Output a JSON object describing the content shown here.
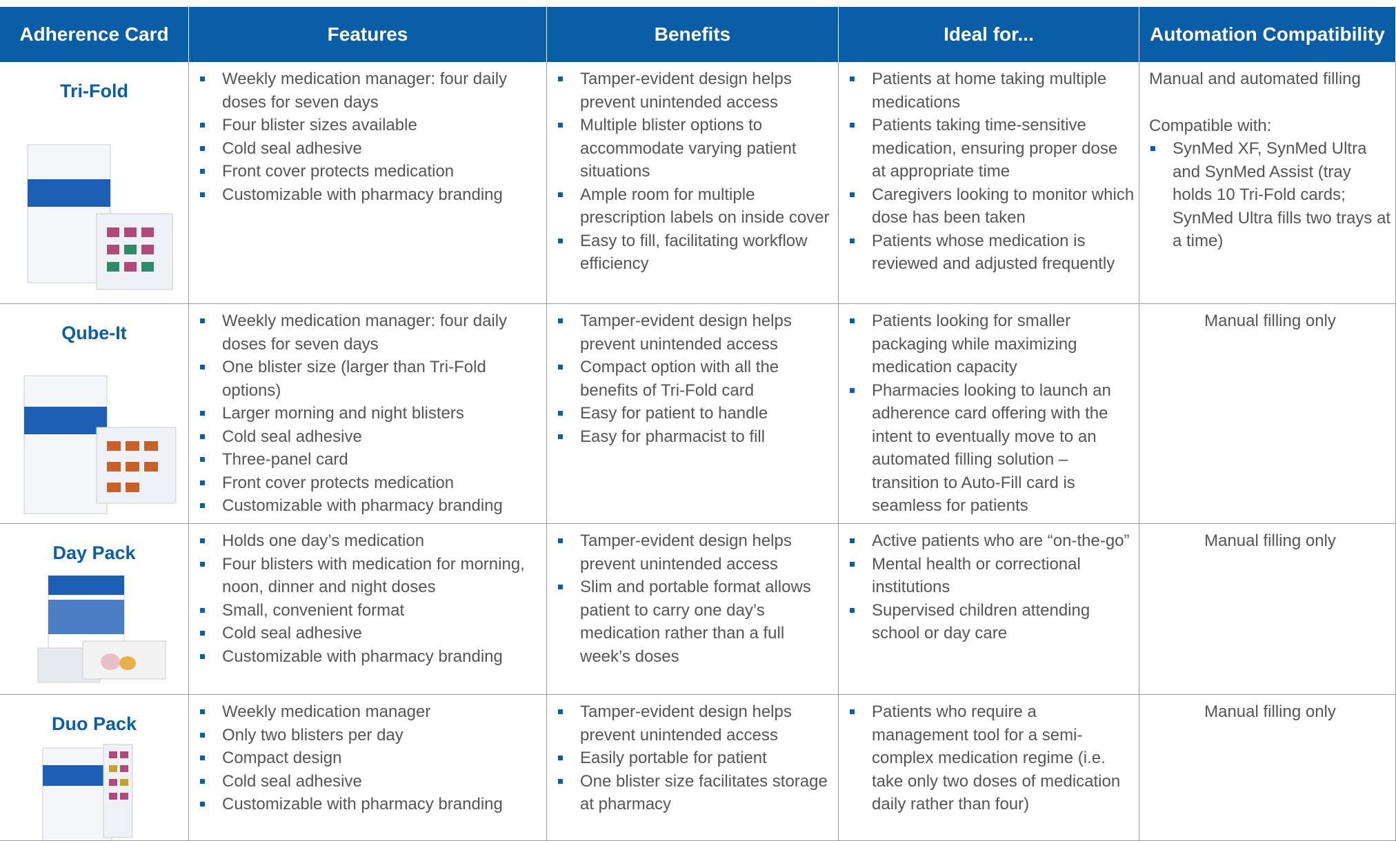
{
  "table": {
    "header": [
      "Adherence Card",
      "Features",
      "Benefits",
      "Ideal for...",
      "Automation Compatibility"
    ],
    "rows": [
      {
        "name": "Tri-Fold",
        "features": [
          "Weekly medication manager: four daily doses for seven days",
          "Four blister sizes available",
          "Cold seal adhesive",
          "Front cover protects medication",
          "Customizable with pharmacy branding"
        ],
        "benefits": [
          "Tamper-evident design helps prevent unintended access",
          "Multiple blister options to accommodate varying patient situations",
          "Ample room for multiple prescription labels on inside cover",
          "Easy to fill, facilitating workflow efficiency"
        ],
        "ideal_for": [
          "Patients at home taking multiple medications",
          "Patients taking time-sensitive medication, ensuring proper dose at appropriate time",
          "Caregivers looking to monitor which dose has been taken",
          "Patients whose medication is reviewed and adjusted frequently"
        ],
        "automation": {
          "text": "Manual and automated filling",
          "note": "Compatible with:",
          "items": [
            "SynMed XF, SynMed Ultra and SynMed Assist (tray holds 10 Tri-Fold cards; SynMed Ultra fills two trays at a time)"
          ]
        }
      },
      {
        "name": "Qube-It",
        "features": [
          "Weekly medication manager: four daily doses for seven days",
          "One blister size (larger than Tri-Fold options)",
          "Larger morning and night blisters",
          "Cold seal adhesive",
          "Three-panel card",
          "Front cover protects medication",
          "Customizable with pharmacy branding"
        ],
        "benefits": [
          "Tamper-evident design helps prevent unintended access",
          "Compact option with all the benefits of Tri-Fold card",
          "Easy for patient to handle",
          "Easy for pharmacist to fill"
        ],
        "ideal_for": [
          "Patients looking for smaller packaging while maximizing medication capacity",
          "Pharmacies looking to launch an adherence card offering with the intent to eventually move to an automated filling solution – transition to Auto-Fill card is seamless for patients"
        ],
        "automation": {
          "text": "Manual filling only"
        }
      },
      {
        "name": "Day Pack",
        "features": [
          "Holds one day’s medication",
          "Four blisters with medication for morning, noon, dinner and night doses",
          "Small, convenient format",
          "Cold seal adhesive",
          "Customizable with pharmacy branding"
        ],
        "benefits": [
          "Tamper-evident design helps prevent unintended access",
          "Slim and portable format allows patient to carry one day’s medication rather than a full week’s doses"
        ],
        "ideal_for": [
          "Active patients who are “on-the-go”",
          "Mental health or correctional institutions",
          "Supervised children attending school or day care"
        ],
        "automation": {
          "text": "Manual filling only"
        }
      },
      {
        "name": "Duo Pack",
        "features": [
          "Weekly medication manager",
          "Only two blisters per day",
          "Compact design",
          "Cold seal adhesive",
          "Customizable with pharmacy branding"
        ],
        "benefits": [
          "Tamper-evident design helps prevent unintended access",
          "Easily portable for patient",
          "One blister size facilitates storage at pharmacy"
        ],
        "ideal_for": [
          "Patients who require a management tool for a semi-complex medication regime (i.e. take only two doses of medication daily rather than four)"
        ],
        "automation": {
          "text": "Manual filling only"
        }
      }
    ]
  }
}
